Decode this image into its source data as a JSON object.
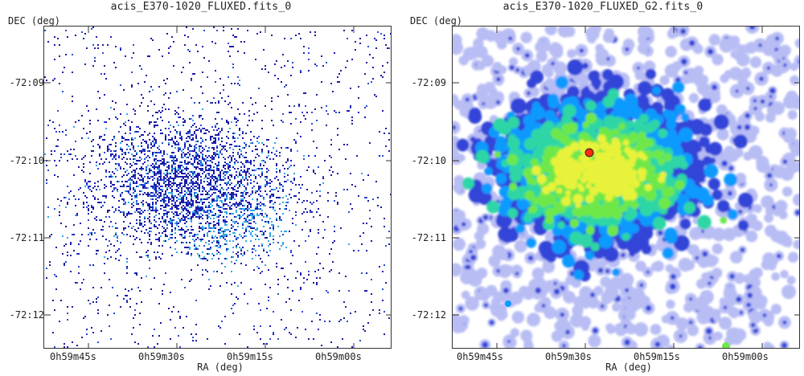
{
  "panels": [
    {
      "title": "acis_E370-1020_FLUXED.fits_0",
      "ylabel": "DEC (deg)",
      "xlabel": "RA (deg)",
      "yticks": [
        "-72:09",
        "-72:10",
        "-72:11",
        "-72:12"
      ],
      "xticks": [
        "0h59m45s",
        "0h59m30s",
        "0h59m15s",
        "0h59m00s"
      ],
      "colormap": [
        "#1a1aa8",
        "#2a4bd8",
        "#2fa8e8"
      ]
    },
    {
      "title": "acis_E370-1020_FLUXED_G2.fits_0",
      "ylabel": "DEC (deg)",
      "xlabel": "RA (deg)",
      "yticks": [
        "-72:09",
        "-72:10",
        "-72:11",
        "-72:12"
      ],
      "xticks": [
        "0h59m45s",
        "0h59m30s",
        "0h59m15s",
        "0h59m00s"
      ],
      "colormap": [
        "#b8bdf4",
        "#3344d8",
        "#0a9aff",
        "#2fd6a6",
        "#6ee84a",
        "#e8f23a",
        "#ff2a10"
      ]
    }
  ]
}
